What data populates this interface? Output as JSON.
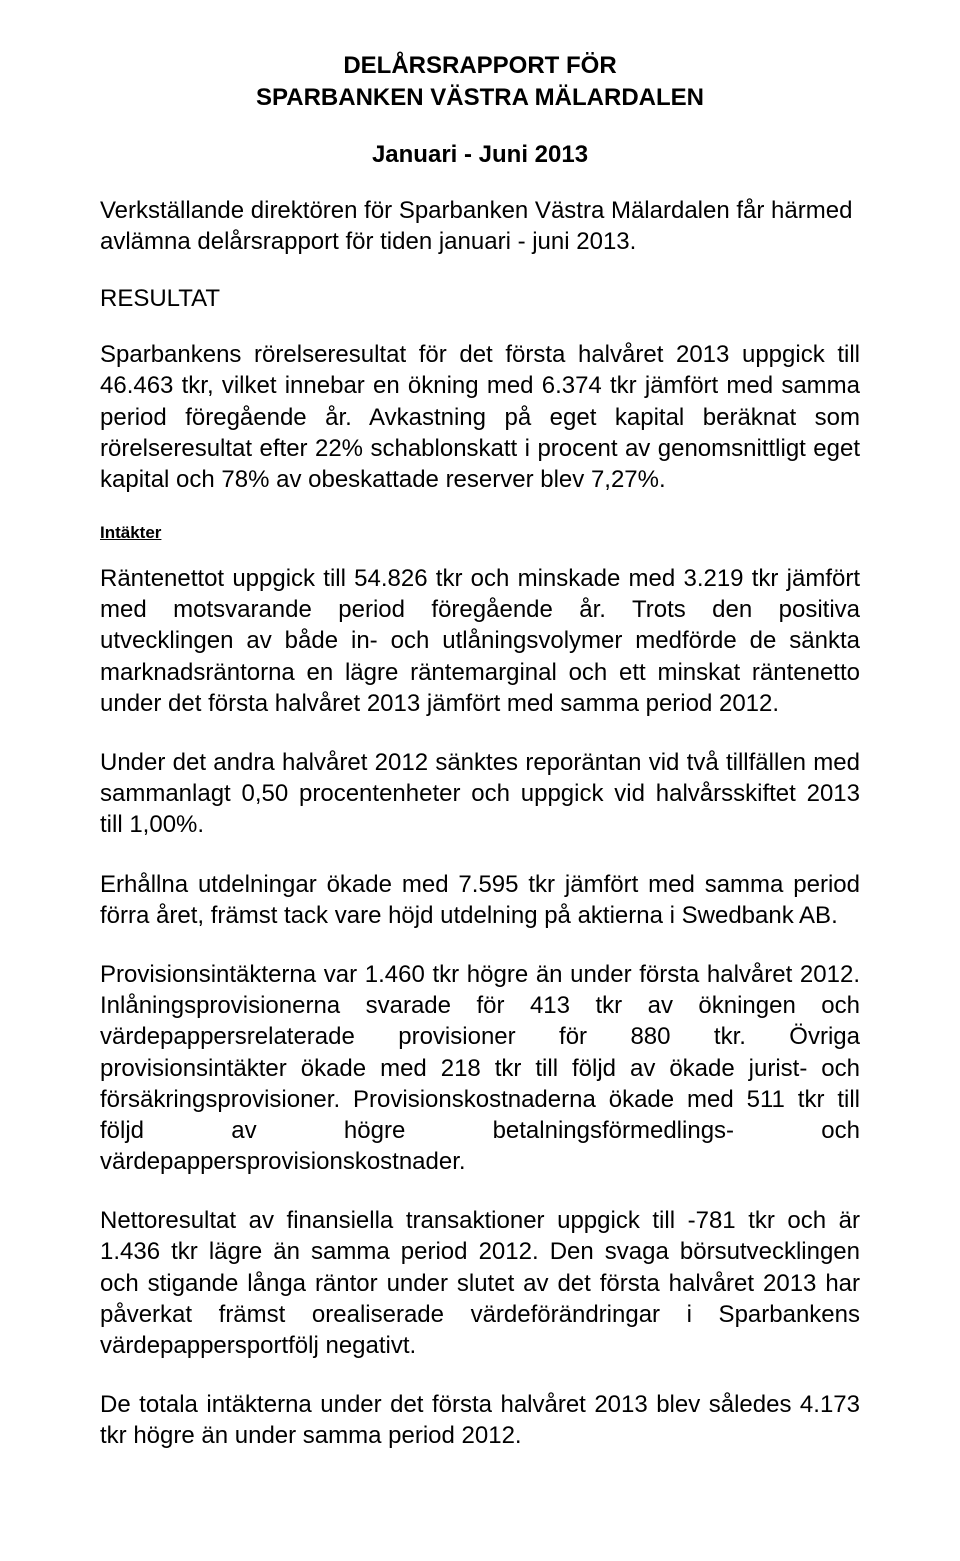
{
  "title_line1": "DELÅRSRAPPORT FÖR",
  "title_line2": "SPARBANKEN VÄSTRA MÄLARDALEN",
  "subtitle": "Januari - Juni 2013",
  "intro": "Verkställande direktören för Sparbanken Västra Mälardalen får härmed avlämna delårsrapport för tiden januari - juni 2013.",
  "section_heading": "RESULTAT",
  "p1": "Sparbankens rörelseresultat för det första halvåret 2013 uppgick till 46.463 tkr, vilket innebar en ökning med 6.374 tkr jämfört med samma period föregående år. Avkastning på eget kapital beräknat som rörelseresultat efter 22% schablonskatt i procent av genomsnittligt eget kapital och 78% av obeskattade reserver blev 7,27%.",
  "sub_heading": "Intäkter",
  "p2": "Räntenettot uppgick till 54.826 tkr och minskade med 3.219 tkr jämfört med motsvarande period föregående år. Trots den positiva utvecklingen av både in- och utlåningsvolymer medförde de sänkta marknadsräntorna en lägre räntemarginal och ett minskat räntenetto under det första halvåret 2013 jämfört med samma period 2012.",
  "p3": "Under det andra halvåret 2012 sänktes reporäntan vid två tillfällen med sammanlagt 0,50 procentenheter och uppgick vid halvårsskiftet 2013 till 1,00%.",
  "p4": "Erhållna utdelningar ökade med 7.595 tkr jämfört med samma period förra året, främst tack vare höjd utdelning på aktierna i Swedbank AB.",
  "p5": "Provisionsintäkterna var 1.460 tkr högre än under första halvåret 2012. Inlåningsprovisionerna svarade för 413 tkr av ökningen och värdepappersrelaterade provisioner för 880 tkr. Övriga provisionsintäkter ökade med 218 tkr till följd av ökade jurist- och försäkringsprovisioner. Provisionskostnaderna ökade med 511 tkr till följd av högre betalningsförmedlings- och värdepappersprovisionskostnader.",
  "p6": "Nettoresultat av finansiella transaktioner uppgick till -781 tkr och är 1.436 tkr lägre än samma period 2012. Den svaga börsutvecklingen och stigande långa räntor under slutet av det första halvåret 2013 har påverkat främst orealiserade värdeförändringar i Sparbankens värdepappersportfölj negativt.",
  "p7": "De totala intäkterna under det första halvåret 2013 blev således 4.173 tkr högre än under samma period 2012."
}
